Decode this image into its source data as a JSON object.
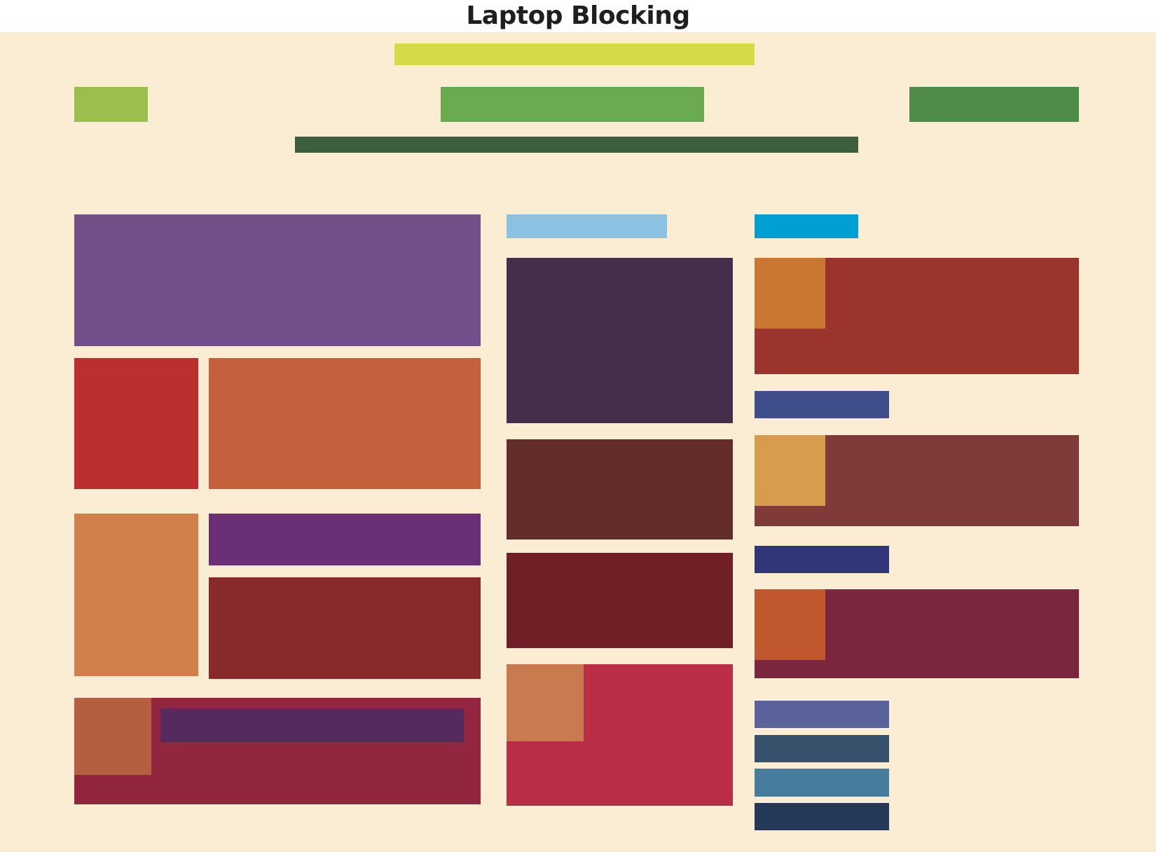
{
  "title": "Laptop Blocking",
  "colors": {
    "page_background": "#ffffff",
    "canvas_background": "#faedd4",
    "title_text": "#1f1f1f"
  },
  "blocks": [
    {
      "name": "header-bar-yellow",
      "color": "#d5da47"
    },
    {
      "name": "nav-block-lime",
      "color": "#9bbf4f"
    },
    {
      "name": "nav-block-green",
      "color": "#6aaa50"
    },
    {
      "name": "nav-block-darkgreen",
      "color": "#4f8c4a"
    },
    {
      "name": "subnav-bar-forest",
      "color": "#3c5e3c"
    },
    {
      "name": "hero-block-purple",
      "color": "#724f89"
    },
    {
      "name": "tile-red",
      "color": "#bb302e"
    },
    {
      "name": "tile-orange-wide",
      "color": "#c5603d"
    },
    {
      "name": "tile-orange-tall",
      "color": "#cf804b"
    },
    {
      "name": "tile-violet-bar",
      "color": "#6b2f77"
    },
    {
      "name": "tile-maroon",
      "color": "#882a2b"
    },
    {
      "name": "footer-block-wine",
      "color": "#93263f"
    },
    {
      "name": "footer-thumb-rust",
      "color": "#b45f41"
    },
    {
      "name": "footer-bar-plum",
      "color": "#552b5f"
    },
    {
      "name": "label-skyblue",
      "color": "#8bc1e2"
    },
    {
      "name": "panel-dark-plum",
      "color": "#432f4c"
    },
    {
      "name": "panel-brown",
      "color": "#622d2b"
    },
    {
      "name": "panel-dark-red",
      "color": "#701f26"
    },
    {
      "name": "panel-crimson",
      "color": "#b92d46"
    },
    {
      "name": "panel-crimson-thumb",
      "color": "#c87b4f"
    },
    {
      "name": "label-cyan",
      "color": "#009fd3"
    },
    {
      "name": "card-1-brick",
      "color": "#9b342d"
    },
    {
      "name": "card-1-thumb",
      "color": "#cb7734"
    },
    {
      "name": "tag-blue-1",
      "color": "#3f4e8b"
    },
    {
      "name": "card-2-brown",
      "color": "#803a3a"
    },
    {
      "name": "card-2-thumb",
      "color": "#d99b4e"
    },
    {
      "name": "tag-navy",
      "color": "#31357a"
    },
    {
      "name": "card-3-burgundy",
      "color": "#7c253f"
    },
    {
      "name": "card-3-thumb",
      "color": "#c0572f"
    },
    {
      "name": "list-item-periwinkle",
      "color": "#59629b"
    },
    {
      "name": "list-item-slate",
      "color": "#37516d"
    },
    {
      "name": "list-item-steel",
      "color": "#487c9f"
    },
    {
      "name": "list-item-midnight",
      "color": "#24395a"
    }
  ]
}
